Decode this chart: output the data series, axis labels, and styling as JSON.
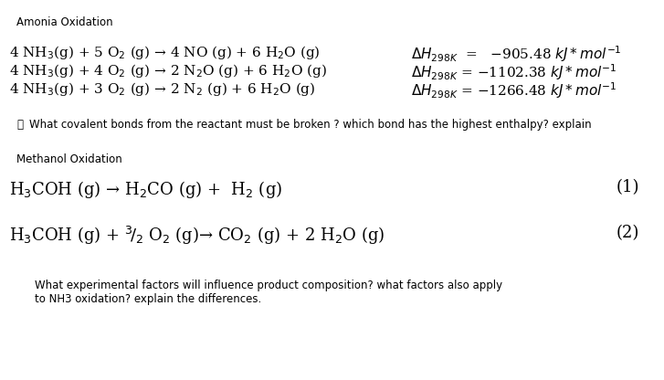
{
  "background_color": "#ffffff",
  "title_amonia": "Amonia Oxidation",
  "title_methanol": "Methanol Oxidation",
  "eq1": "4 NH$_3$(g) + 5 O$_2$ (g) → 4 NO (g) + 6 H$_2$O (g)",
  "eq2": "4 NH$_3$(g) + 4 O$_2$ (g) → 2 N$_2$O (g) + 6 H$_2$O (g)",
  "eq3": "4 NH$_3$(g) + 3 O$_2$ (g) → 2 N$_2$ (g) + 6 H$_2$O (g)",
  "dh1": "$\\Delta H_{298K}$  =   −905.48 $kJ * mol^{-1}$",
  "dh2": "$\\Delta H_{298K}$ = −1102.38 $kJ * mol^{-1}$",
  "dh3": "$\\Delta H_{298K}$ = −1266.48 $kJ * mol^{-1}$",
  "question1_icon": "🔎",
  "question1": "What covalent bonds from the reactant must be broken ? which bond has the highest enthalpy? explain",
  "meq1": "H$_3$COH (g) → H$_2$CO (g) +  H$_2$ (g)",
  "meq2": "H$_3$COH (g) + $^3\\!/_2$ O$_2$ (g)→ CO$_2$ (g) + 2 H$_2$O (g)",
  "meq1_num": "(1)",
  "meq2_num": "(2)",
  "question2": "What experimental factors will influence product composition? what factors also apply\nto NH3 oxidation? explain the differences.",
  "text_color": "#000000",
  "title_fontsize": 8.5,
  "eq_fontsize": 11,
  "dh_fontsize": 11,
  "small_fontsize": 8.5,
  "meq_fontsize": 13
}
